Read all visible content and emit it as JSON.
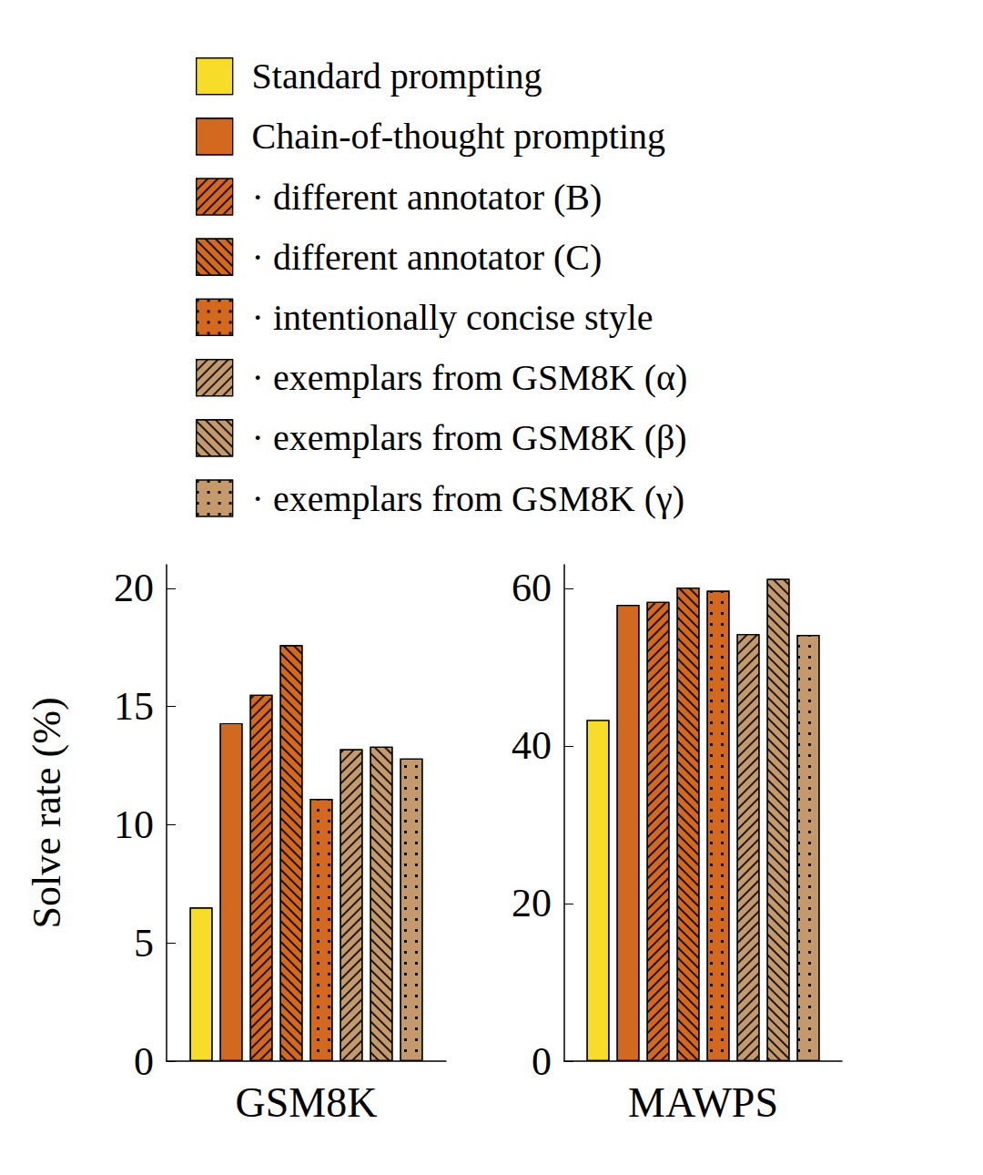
{
  "chart_data": [
    {
      "type": "bar",
      "title": "GSM8K",
      "y_label": "Solve rate (%)",
      "categories": [
        "GSM8K"
      ],
      "ylim": [
        0,
        21
      ],
      "yticks": [
        0,
        5,
        10,
        15,
        20
      ],
      "grid": false,
      "legend": "top",
      "series": [
        {
          "name": "Standard prompting",
          "color": "#f7dc2a",
          "values": [
            6.5
          ]
        },
        {
          "name": "Chain-of-thought prompting",
          "color": "#d2691e",
          "values": [
            14.3
          ]
        },
        {
          "name": "· different annotator (B)",
          "color": "#d2691e",
          "values": [
            15.5
          ]
        },
        {
          "name": "· different annotator (C)",
          "color": "#d2691e",
          "values": [
            17.6
          ]
        },
        {
          "name": "· intentionally concise style",
          "color": "#d2691e",
          "values": [
            11.1
          ]
        },
        {
          "name": "· exemplars from GSM8K (α)",
          "color": "#c49a6c",
          "values": [
            13.2
          ]
        },
        {
          "name": "· exemplars from GSM8K (β)",
          "color": "#c49a6c",
          "values": [
            13.3
          ]
        },
        {
          "name": "· exemplars from GSM8K (γ)",
          "color": "#c49a6c",
          "values": [
            12.8
          ]
        }
      ]
    },
    {
      "type": "bar",
      "title": "MAWPS",
      "categories": [
        "MAWPS"
      ],
      "ylim": [
        0,
        63
      ],
      "yticks": [
        0,
        20,
        40,
        60
      ],
      "grid": false,
      "series": [
        {
          "name": "Standard prompting",
          "color": "#f7dc2a",
          "values": [
            43.3
          ]
        },
        {
          "name": "Chain-of-thought prompting",
          "color": "#d2691e",
          "values": [
            57.9
          ]
        },
        {
          "name": "· different annotator (B)",
          "color": "#d2691e",
          "values": [
            58.3
          ]
        },
        {
          "name": "· different annotator (C)",
          "color": "#d2691e",
          "values": [
            60.1
          ]
        },
        {
          "name": "· intentionally concise style",
          "color": "#d2691e",
          "values": [
            59.7
          ]
        },
        {
          "name": "· exemplars from GSM8K (α)",
          "color": "#c49a6c",
          "values": [
            54.2
          ]
        },
        {
          "name": "· exemplars from GSM8K (β)",
          "color": "#c49a6c",
          "values": [
            61.2
          ]
        },
        {
          "name": "· exemplars from GSM8K (γ)",
          "color": "#c49a6c",
          "values": [
            54.1
          ]
        }
      ]
    }
  ]
}
